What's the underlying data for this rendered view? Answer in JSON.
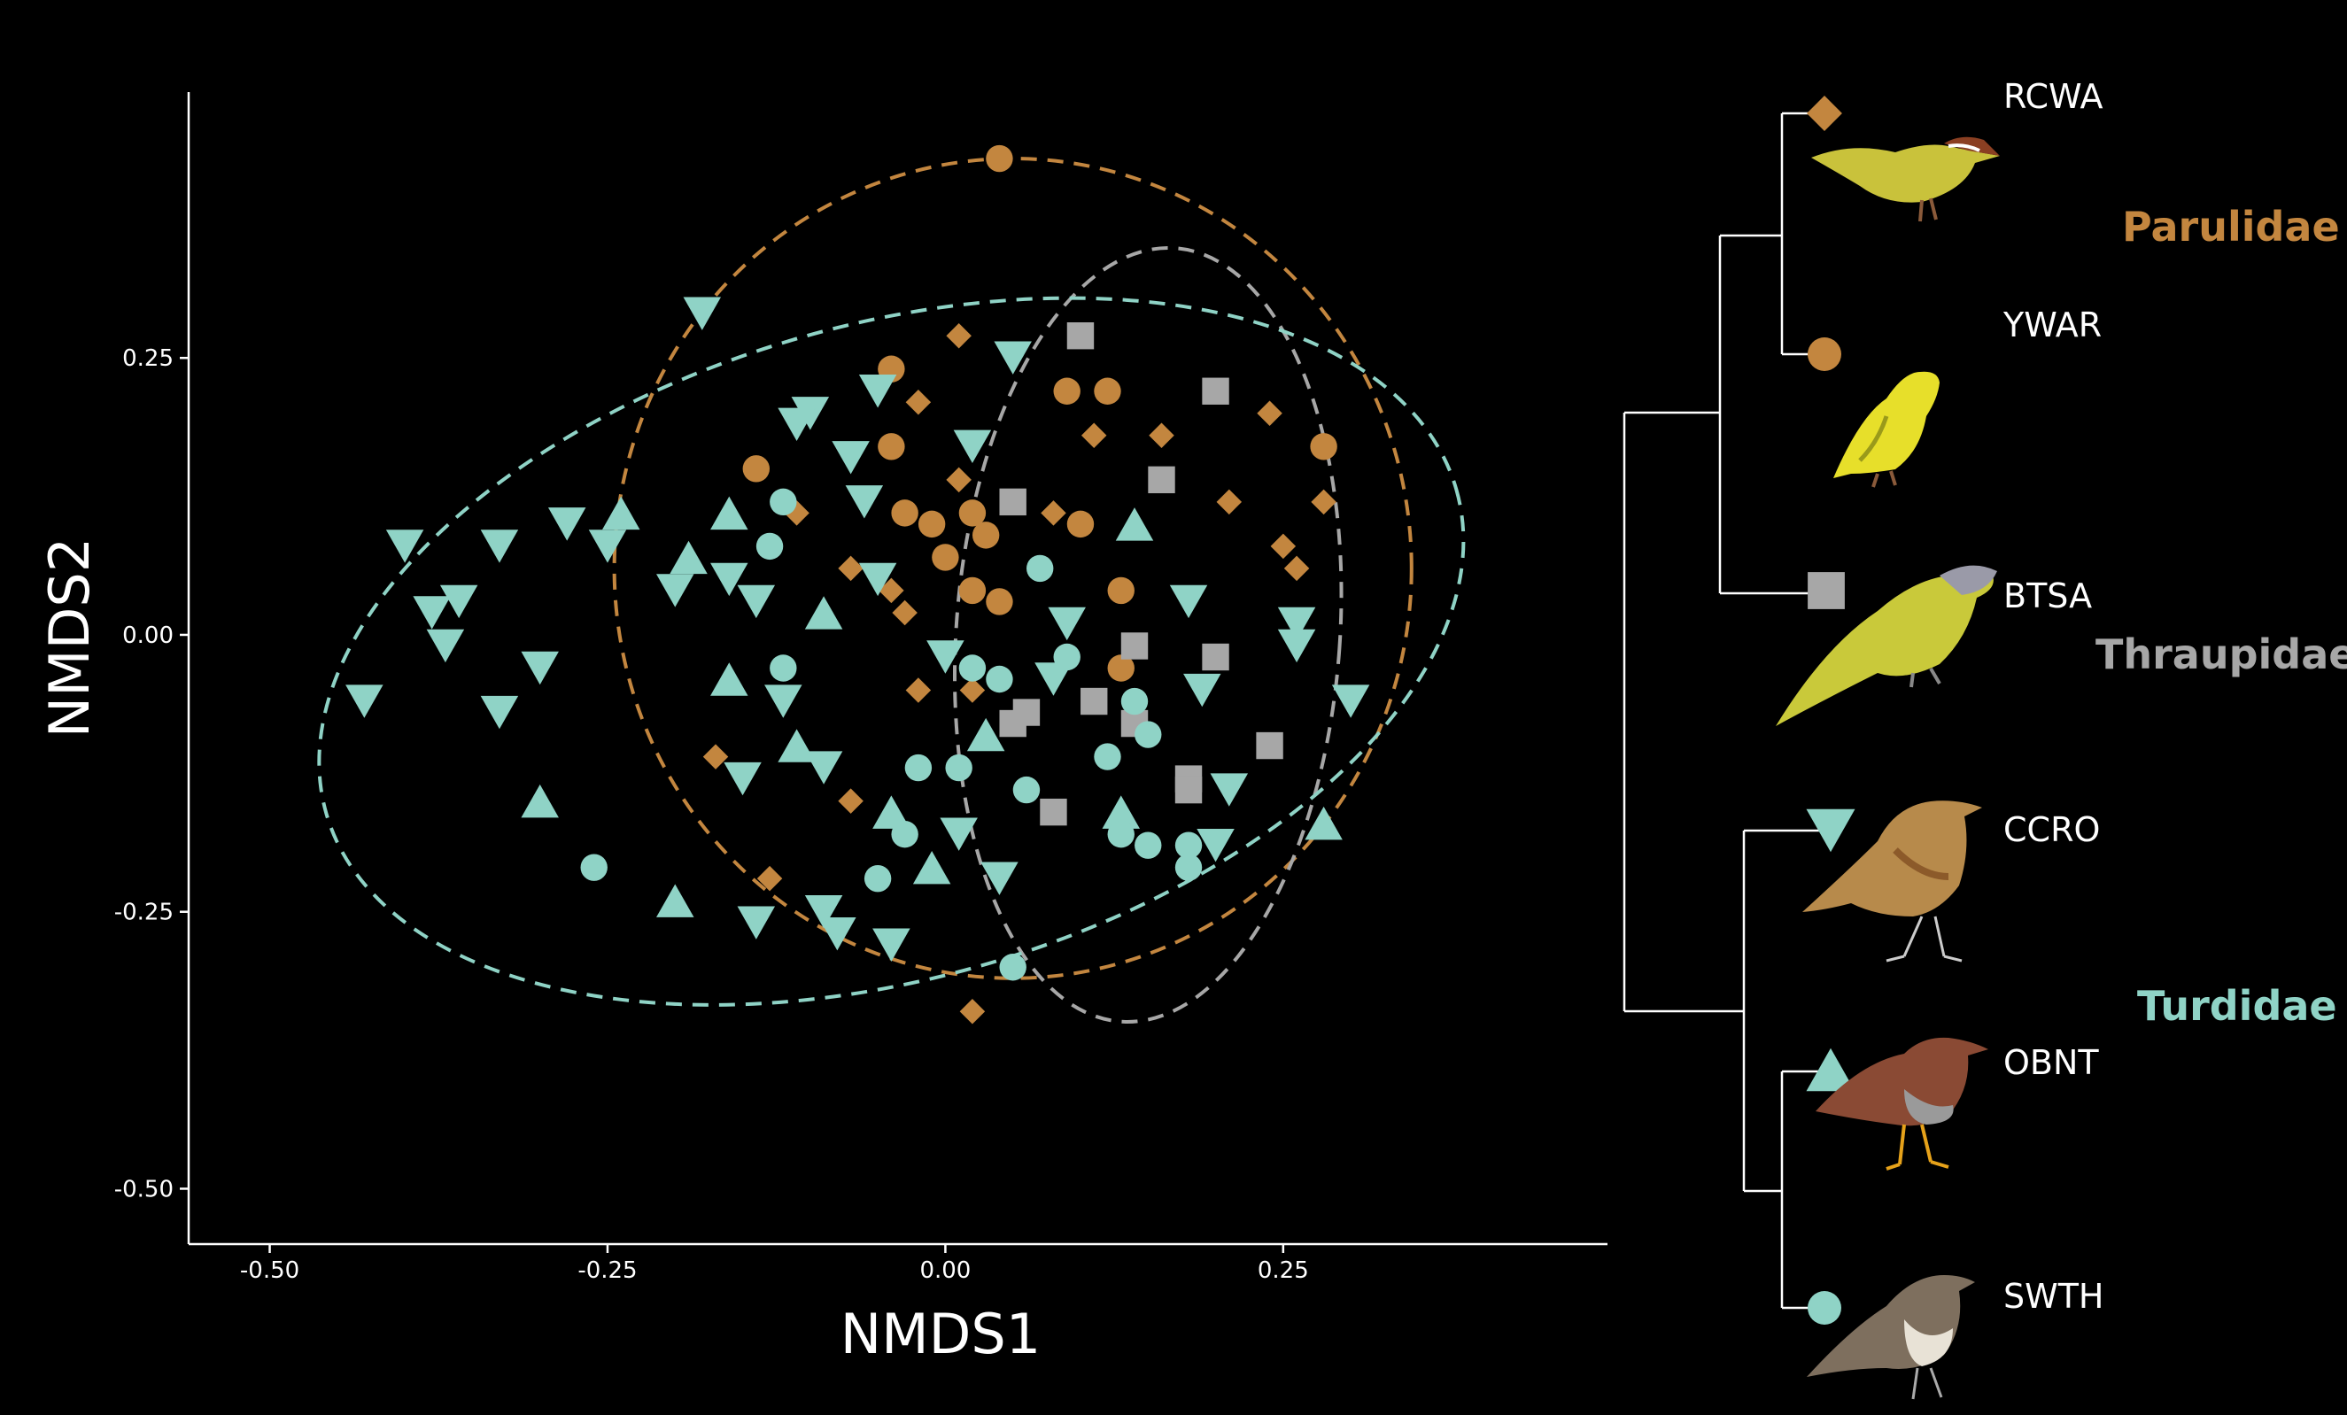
{
  "colors": {
    "background": "#000000",
    "axis": "#ffffff",
    "parulidae": "#c3863f",
    "thraupidae": "#a7a7a7",
    "turdidae": "#8fd3c6"
  },
  "chart_data": {
    "type": "scatter",
    "xlabel": "NMDS1",
    "ylabel": "NMDS2",
    "xlim": [
      -0.56,
      0.49
    ],
    "ylim": [
      -0.55,
      0.49
    ],
    "xticks": [
      -0.5,
      -0.25,
      0.0,
      0.25
    ],
    "yticks": [
      -0.5,
      -0.25,
      0.0,
      0.25
    ],
    "xtick_labels": [
      "-0.50",
      "-0.25",
      "0.00",
      "0.25"
    ],
    "ytick_labels": [
      "-0.50",
      "-0.25",
      "0.00",
      "0.25"
    ],
    "grid": false,
    "legend": "right (phylogenetic tree with species codes)",
    "series": [
      {
        "name": "RCWA",
        "family": "Parulidae",
        "shape": "diamond",
        "color": "#c3863f",
        "points": [
          [
            0.01,
            0.27
          ],
          [
            -0.02,
            0.21
          ],
          [
            0.11,
            0.18
          ],
          [
            0.16,
            0.18
          ],
          [
            0.24,
            0.2
          ],
          [
            0.01,
            0.14
          ],
          [
            -0.11,
            0.11
          ],
          [
            0.08,
            0.11
          ],
          [
            0.21,
            0.12
          ],
          [
            0.28,
            0.12
          ],
          [
            -0.07,
            0.06
          ],
          [
            -0.04,
            0.04
          ],
          [
            -0.03,
            0.02
          ],
          [
            0.25,
            0.08
          ],
          [
            0.26,
            0.06
          ],
          [
            -0.02,
            -0.05
          ],
          [
            0.02,
            -0.05
          ],
          [
            -0.17,
            -0.11
          ],
          [
            -0.07,
            -0.15
          ],
          [
            -0.13,
            -0.22
          ],
          [
            0.02,
            -0.34
          ]
        ]
      },
      {
        "name": "YWAR",
        "family": "Parulidae",
        "shape": "circle",
        "color": "#c3863f",
        "points": [
          [
            0.04,
            0.43
          ],
          [
            -0.04,
            0.24
          ],
          [
            0.09,
            0.22
          ],
          [
            0.12,
            0.22
          ],
          [
            0.28,
            0.17
          ],
          [
            -0.04,
            0.17
          ],
          [
            -0.14,
            0.15
          ],
          [
            -0.03,
            0.11
          ],
          [
            0.02,
            0.11
          ],
          [
            0.1,
            0.1
          ],
          [
            -0.01,
            0.1
          ],
          [
            0.03,
            0.09
          ],
          [
            0.0,
            0.07
          ],
          [
            0.02,
            0.04
          ],
          [
            0.04,
            0.03
          ],
          [
            0.13,
            0.04
          ],
          [
            0.13,
            -0.03
          ]
        ]
      },
      {
        "name": "BTSA",
        "family": "Thraupidae",
        "shape": "square",
        "color": "#a7a7a7",
        "points": [
          [
            0.1,
            0.27
          ],
          [
            0.2,
            0.22
          ],
          [
            0.16,
            0.14
          ],
          [
            0.05,
            0.12
          ],
          [
            0.14,
            -0.01
          ],
          [
            0.2,
            -0.02
          ],
          [
            0.11,
            -0.06
          ],
          [
            0.06,
            -0.07
          ],
          [
            0.05,
            -0.08
          ],
          [
            0.14,
            -0.08
          ],
          [
            0.24,
            -0.1
          ],
          [
            0.18,
            -0.13
          ],
          [
            0.18,
            -0.14
          ],
          [
            0.08,
            -0.16
          ]
        ]
      },
      {
        "name": "CCRO",
        "family": "Turdidae",
        "shape": "triangle-down",
        "color": "#8fd3c6",
        "points": [
          [
            -0.18,
            0.29
          ],
          [
            0.05,
            0.25
          ],
          [
            -0.05,
            0.22
          ],
          [
            -0.1,
            0.2
          ],
          [
            -0.11,
            0.19
          ],
          [
            0.02,
            0.17
          ],
          [
            -0.07,
            0.16
          ],
          [
            -0.06,
            0.12
          ],
          [
            -0.4,
            0.08
          ],
          [
            -0.33,
            0.08
          ],
          [
            -0.28,
            0.1
          ],
          [
            -0.25,
            0.08
          ],
          [
            -0.16,
            0.05
          ],
          [
            -0.38,
            0.02
          ],
          [
            -0.36,
            0.03
          ],
          [
            -0.2,
            0.04
          ],
          [
            -0.14,
            0.03
          ],
          [
            -0.05,
            0.05
          ],
          [
            0.18,
            0.03
          ],
          [
            0.09,
            0.01
          ],
          [
            -0.37,
            -0.01
          ],
          [
            0.26,
            0.01
          ],
          [
            0.26,
            -0.01
          ],
          [
            -0.3,
            -0.03
          ],
          [
            0.0,
            -0.02
          ],
          [
            0.08,
            -0.04
          ],
          [
            0.19,
            -0.05
          ],
          [
            -0.43,
            -0.06
          ],
          [
            -0.33,
            -0.07
          ],
          [
            -0.12,
            -0.06
          ],
          [
            0.3,
            -0.06
          ],
          [
            -0.09,
            -0.12
          ],
          [
            -0.15,
            -0.13
          ],
          [
            0.21,
            -0.14
          ],
          [
            0.01,
            -0.18
          ],
          [
            0.2,
            -0.19
          ],
          [
            0.04,
            -0.22
          ],
          [
            -0.09,
            -0.25
          ],
          [
            -0.14,
            -0.26
          ],
          [
            -0.08,
            -0.27
          ],
          [
            -0.04,
            -0.28
          ]
        ]
      },
      {
        "name": "OBNT",
        "family": "Turdidae",
        "shape": "triangle-up",
        "color": "#8fd3c6",
        "points": [
          [
            -0.24,
            0.11
          ],
          [
            -0.16,
            0.11
          ],
          [
            0.14,
            0.1
          ],
          [
            -0.19,
            0.07
          ],
          [
            -0.09,
            0.02
          ],
          [
            -0.16,
            -0.04
          ],
          [
            -0.11,
            -0.1
          ],
          [
            0.03,
            -0.09
          ],
          [
            -0.3,
            -0.15
          ],
          [
            -0.04,
            -0.16
          ],
          [
            0.13,
            -0.16
          ],
          [
            -0.01,
            -0.21
          ],
          [
            0.28,
            -0.17
          ],
          [
            -0.2,
            -0.24
          ]
        ]
      },
      {
        "name": "SWTH",
        "family": "Turdidae",
        "shape": "circle",
        "color": "#8fd3c6",
        "points": [
          [
            -0.12,
            0.12
          ],
          [
            -0.13,
            0.08
          ],
          [
            0.07,
            0.06
          ],
          [
            0.09,
            -0.02
          ],
          [
            -0.12,
            -0.03
          ],
          [
            0.02,
            -0.03
          ],
          [
            0.04,
            -0.04
          ],
          [
            0.14,
            -0.06
          ],
          [
            0.15,
            -0.09
          ],
          [
            0.12,
            -0.11
          ],
          [
            -0.02,
            -0.12
          ],
          [
            0.01,
            -0.12
          ],
          [
            0.06,
            -0.14
          ],
          [
            -0.03,
            -0.18
          ],
          [
            0.13,
            -0.18
          ],
          [
            0.18,
            -0.19
          ],
          [
            0.15,
            -0.19
          ],
          [
            0.18,
            -0.21
          ],
          [
            -0.26,
            -0.21
          ],
          [
            -0.05,
            -0.22
          ],
          [
            0.05,
            -0.3
          ]
        ]
      }
    ],
    "ellipses": [
      {
        "name": "Parulidae",
        "color": "#c3863f",
        "cx": 0.05,
        "cy": 0.06,
        "rx": 0.295,
        "ry": 0.37
      },
      {
        "name": "Thraupidae",
        "color": "#a7a7a7",
        "cx": 0.15,
        "cy": 0.0,
        "rx": 0.142,
        "ry": 0.35,
        "angle": 4
      },
      {
        "name": "Turdidae",
        "color": "#8fd3c6",
        "cx": -0.04,
        "cy": -0.015,
        "rx": 0.435,
        "ry": 0.295,
        "angle": -16
      }
    ]
  },
  "legend": {
    "species": [
      {
        "code": "RCWA",
        "shape": "diamond",
        "color": "#c3863f"
      },
      {
        "code": "YWAR",
        "shape": "circle",
        "color": "#c3863f"
      },
      {
        "code": "BTSA",
        "shape": "square",
        "color": "#a7a7a7"
      },
      {
        "code": "CCRO",
        "shape": "triangle-down",
        "color": "#8fd3c6"
      },
      {
        "code": "OBNT",
        "shape": "triangle-up",
        "color": "#8fd3c6"
      },
      {
        "code": "SWTH",
        "shape": "circle",
        "color": "#8fd3c6"
      }
    ],
    "families": [
      {
        "label": "Parulidae",
        "color": "#c3863f"
      },
      {
        "label": "Thraupidae",
        "color": "#a7a7a7"
      },
      {
        "label": "Turdidae",
        "color": "#8fd3c6"
      }
    ]
  }
}
